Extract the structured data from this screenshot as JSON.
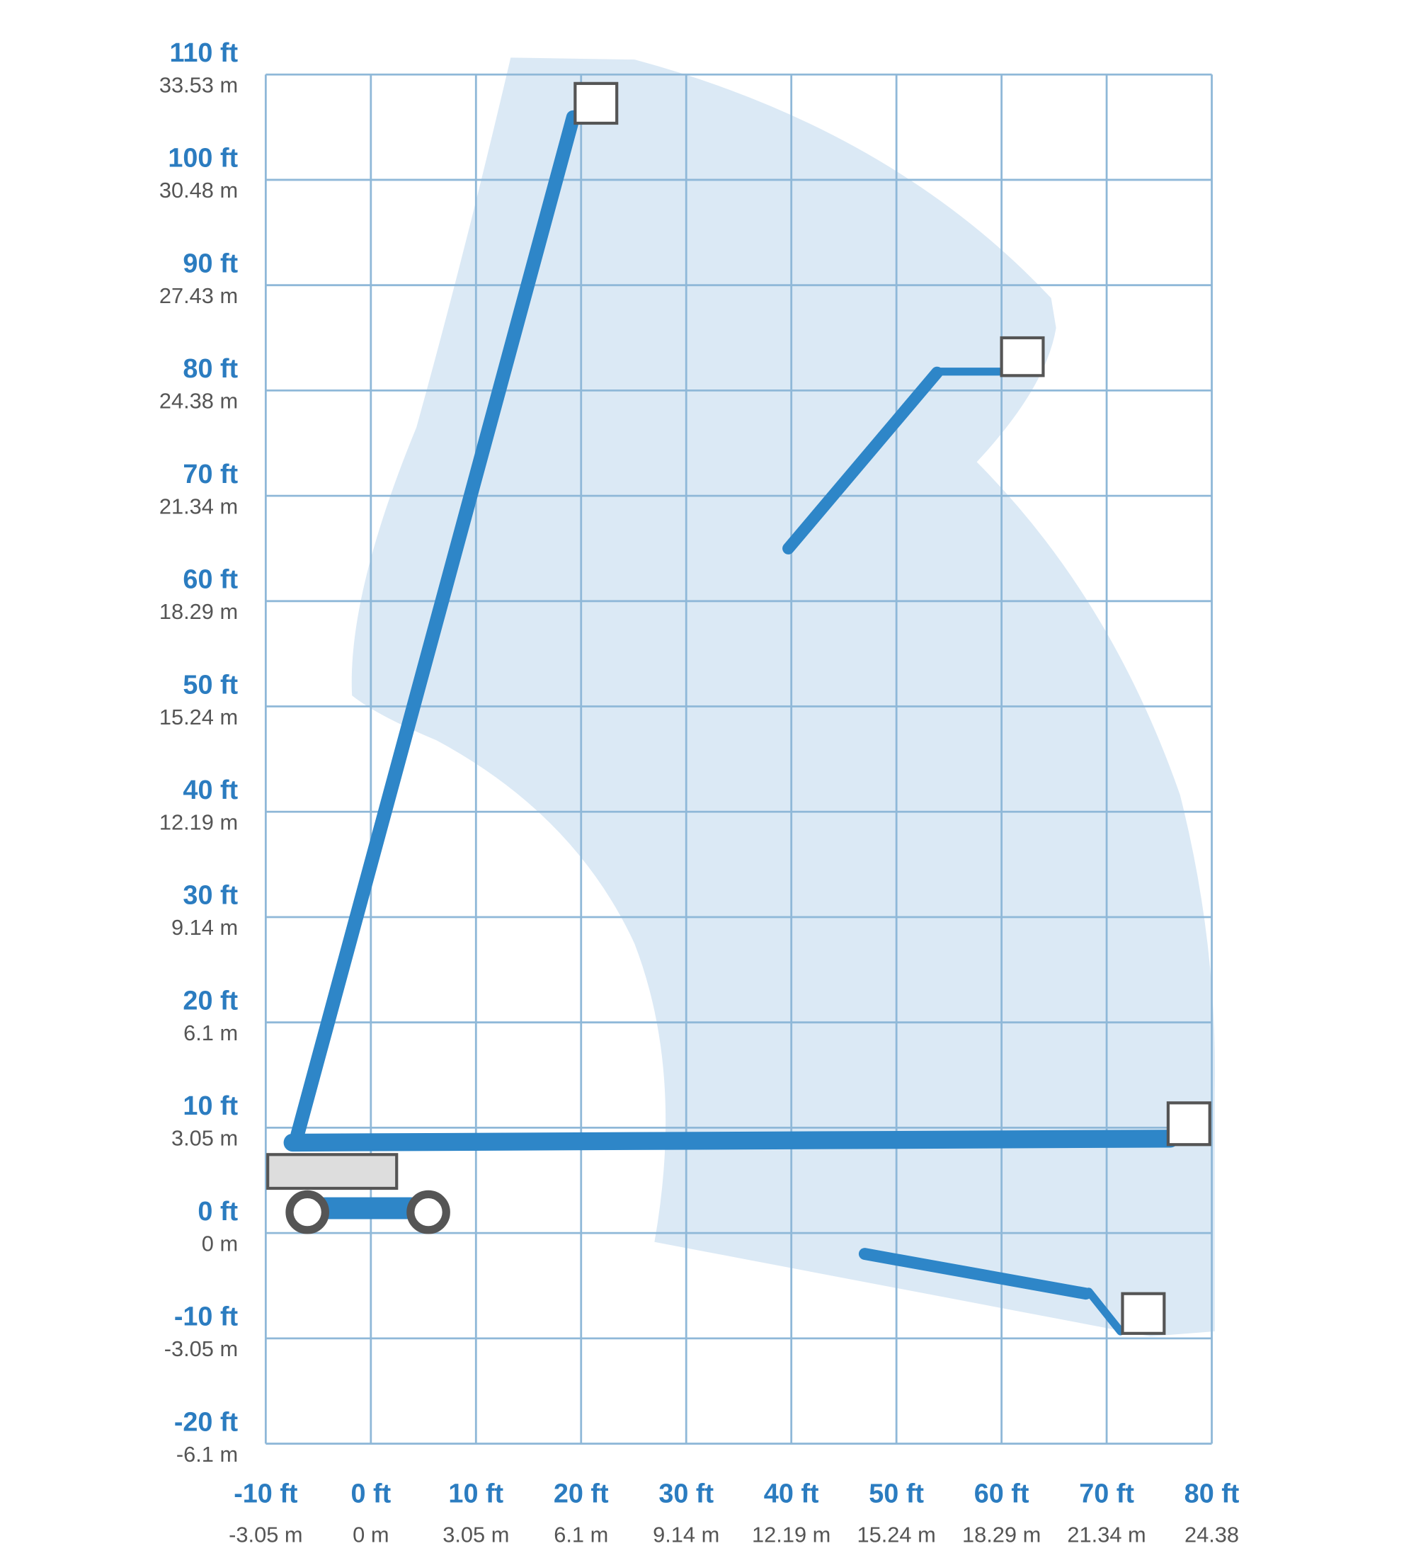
{
  "y_axis": {
    "labels": [
      {
        "ft": "110 ft",
        "m": "33.53 m"
      },
      {
        "ft": "100 ft",
        "m": "30.48 m"
      },
      {
        "ft": "90 ft",
        "m": "27.43 m"
      },
      {
        "ft": "80 ft",
        "m": "24.38 m"
      },
      {
        "ft": "70 ft",
        "m": "21.34 m"
      },
      {
        "ft": "60 ft",
        "m": "18.29 m"
      },
      {
        "ft": "50 ft",
        "m": "15.24 m"
      },
      {
        "ft": "40 ft",
        "m": "12.19 m"
      },
      {
        "ft": "30 ft",
        "m": "9.14 m"
      },
      {
        "ft": "20 ft",
        "m": "6.1 m"
      },
      {
        "ft": "10 ft",
        "m": "3.05 m"
      },
      {
        "ft": "0 ft",
        "m": "0 m"
      },
      {
        "ft": "-10 ft",
        "m": "-3.05 m"
      },
      {
        "ft": "-20 ft",
        "m": "-6.1 m"
      }
    ]
  },
  "x_axis": {
    "labels": [
      {
        "ft": "-10 ft",
        "m": "-3.05 m"
      },
      {
        "ft": "0 ft",
        "m": "0 m"
      },
      {
        "ft": "10 ft",
        "m": "3.05 m"
      },
      {
        "ft": "20 ft",
        "m": "6.1 m"
      },
      {
        "ft": "30 ft",
        "m": "9.14 m"
      },
      {
        "ft": "40 ft",
        "m": "12.19 m"
      },
      {
        "ft": "50 ft",
        "m": "15.24 m"
      },
      {
        "ft": "60 ft",
        "m": "18.29 m"
      },
      {
        "ft": "70 ft",
        "m": "21.34 m"
      },
      {
        "ft": "80 ft",
        "m": "24.38"
      }
    ]
  }
}
